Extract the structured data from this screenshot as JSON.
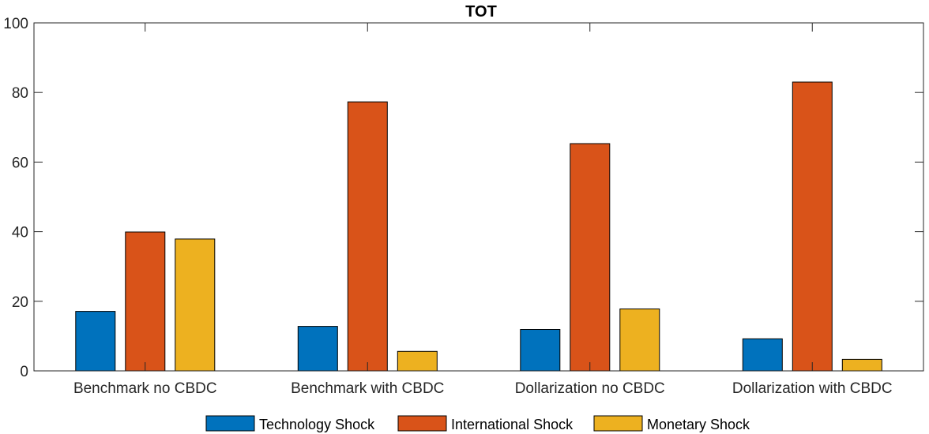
{
  "chart_data": {
    "type": "bar",
    "title": "TOT",
    "xlabel": "",
    "ylabel": "",
    "categories": [
      "Benchmark no CBDC",
      "Benchmark with CBDC",
      "Dollarization no CBDC",
      "Dollarization with CBDC"
    ],
    "series": [
      {
        "name": "Technology Shock",
        "color": "#0072BD",
        "values": [
          17.1,
          12.8,
          11.9,
          9.2
        ]
      },
      {
        "name": "International Shock",
        "color": "#D95319",
        "values": [
          39.9,
          77.3,
          65.3,
          83.0
        ]
      },
      {
        "name": "Monetary Shock",
        "color": "#EDB120",
        "values": [
          37.9,
          5.6,
          17.8,
          3.3
        ]
      }
    ],
    "ylim": [
      0,
      100
    ],
    "yticks": [
      "0",
      "20",
      "40",
      "60",
      "80",
      "100"
    ],
    "grid": false,
    "legend_position": "bottom"
  }
}
